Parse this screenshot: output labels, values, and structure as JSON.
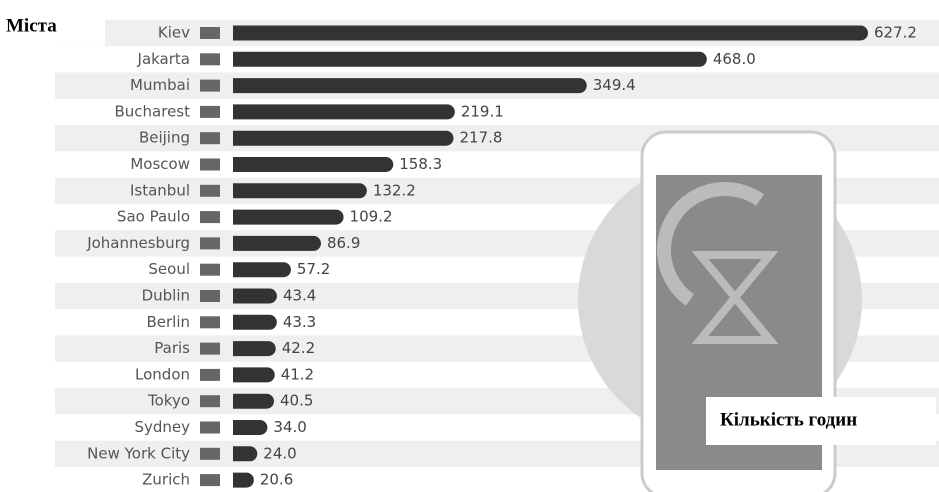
{
  "chart_data": {
    "type": "bar",
    "orientation": "horizontal",
    "annotations": [
      "Міста",
      "Кількість годин"
    ],
    "categories": [
      "Kiev",
      "Jakarta",
      "Mumbai",
      "Bucharest",
      "Beijing",
      "Moscow",
      "Istanbul",
      "Sao Paulo",
      "Johannesburg",
      "Seoul",
      "Dublin",
      "Berlin",
      "Paris",
      "London",
      "Tokyo",
      "Sydney",
      "New York City",
      "Zurich"
    ],
    "values": [
      627.2,
      468.0,
      349.4,
      219.1,
      217.8,
      158.3,
      132.2,
      109.2,
      86.9,
      57.2,
      43.4,
      43.3,
      42.2,
      41.2,
      40.5,
      34.0,
      24.0,
      20.6
    ],
    "value_labels": [
      "627.2",
      "468.0",
      "349.4",
      "219.1",
      "217.8",
      "158.3",
      "132.2",
      "109.2",
      "86.9",
      "57.2",
      "43.4",
      "43.3",
      "42.2",
      "41.2",
      "40.5",
      "34.0",
      "24.0",
      "20.6"
    ],
    "color": "#333333"
  }
}
